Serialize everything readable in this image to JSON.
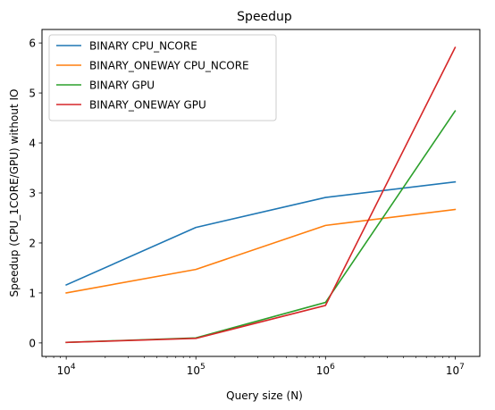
{
  "chart_data": {
    "type": "line",
    "title": "Speedup",
    "xlabel": "Query size (N)",
    "ylabel": "Speedup (CPU_1CORE/GPU) without IO",
    "x_scale": "log",
    "x": [
      10000,
      100000,
      1000000,
      10000000
    ],
    "xticks": [
      {
        "value": 10000,
        "base": "10",
        "exp": "4"
      },
      {
        "value": 100000,
        "base": "10",
        "exp": "5"
      },
      {
        "value": 1000000,
        "base": "10",
        "exp": "6"
      },
      {
        "value": 10000000,
        "base": "10",
        "exp": "7"
      }
    ],
    "xlim": [
      6500,
      15500000
    ],
    "ylim": [
      -0.27,
      6.27
    ],
    "yticks": [
      0,
      1,
      2,
      3,
      4,
      5,
      6
    ],
    "grid": false,
    "legend_position": "top-left",
    "series": [
      {
        "name": "BINARY CPU_NCORE",
        "color": "#1f77b4",
        "values": [
          1.16,
          2.31,
          2.91,
          3.22
        ]
      },
      {
        "name": "BINARY_ONEWAY CPU_NCORE",
        "color": "#ff7f0e",
        "values": [
          1.0,
          1.47,
          2.35,
          2.67
        ]
      },
      {
        "name": "BINARY GPU",
        "color": "#2ca02c",
        "values": [
          0.01,
          0.1,
          0.81,
          4.64
        ]
      },
      {
        "name": "BINARY_ONEWAY GPU",
        "color": "#d62728",
        "values": [
          0.01,
          0.09,
          0.75,
          5.91
        ]
      }
    ]
  }
}
